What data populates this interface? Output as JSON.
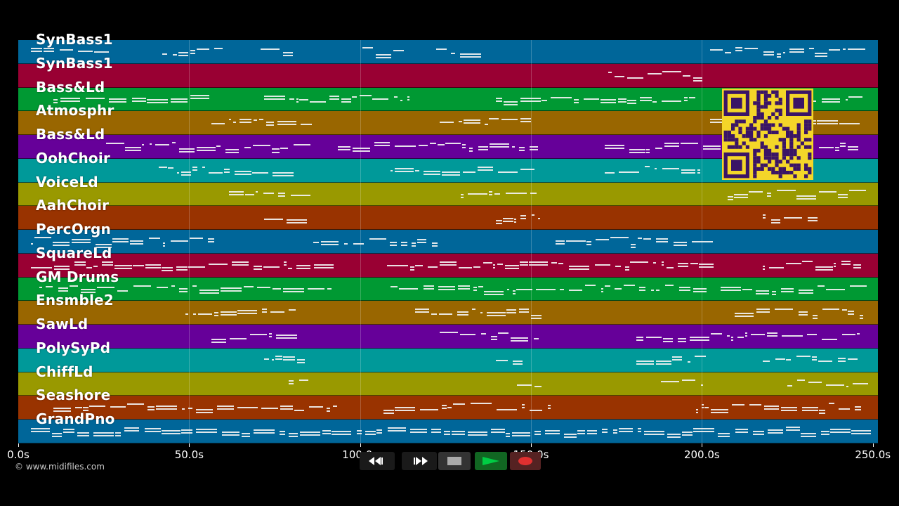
{
  "tracks": [
    {
      "label": "SynBass1",
      "color": "#006699"
    },
    {
      "label": "SynBass1",
      "color": "#990033"
    },
    {
      "label": "Bass&Ld",
      "color": "#009933"
    },
    {
      "label": "Atmosphr",
      "color": "#996600"
    },
    {
      "label": "Bass&Ld",
      "color": "#660099"
    },
    {
      "label": "OohChoir",
      "color": "#009999"
    },
    {
      "label": "VoiceLd",
      "color": "#999900"
    },
    {
      "label": "AahChoir",
      "color": "#993300"
    },
    {
      "label": "PercOrgn",
      "color": "#006699"
    },
    {
      "label": "SquareLd",
      "color": "#990033"
    },
    {
      "label": "GM Drums",
      "color": "#009933"
    },
    {
      "label": "Ensmble2",
      "color": "#996600"
    },
    {
      "label": "SawLd",
      "color": "#660099"
    },
    {
      "label": "PolySyPd",
      "color": "#009999"
    },
    {
      "label": "ChiffLd",
      "color": "#999900"
    },
    {
      "label": "Seashore",
      "color": "#993300"
    },
    {
      "label": "GrandPno",
      "color": "#006699"
    }
  ],
  "timeline": {
    "ticks": [
      "0.0s",
      "50.0s",
      "100.0s",
      "150.0s",
      "200.0s",
      "250.0s"
    ]
  },
  "copyright": "© www.midifiles.com",
  "transport": {
    "rewind_icon": "rewind-icon",
    "fast_forward_icon": "fast-forward-icon",
    "stop_icon": "stop-icon",
    "play_icon": "play-icon",
    "record_icon": "record-icon",
    "play_color": "#00cc44",
    "record_color": "#e03030"
  },
  "qr_color": "#f4d629"
}
